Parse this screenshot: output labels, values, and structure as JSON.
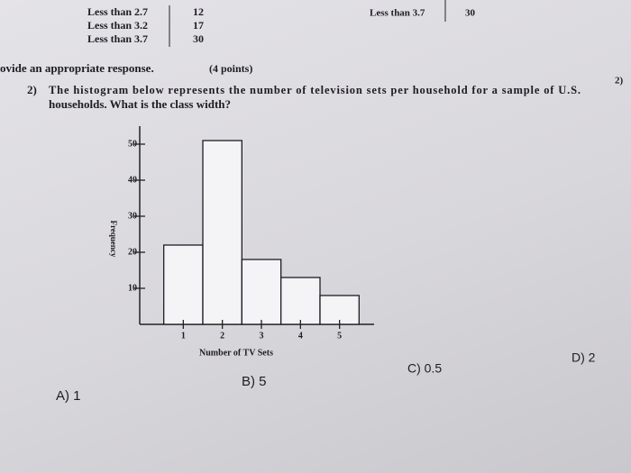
{
  "table_left": {
    "rows": [
      [
        "Less than 2.7",
        "12"
      ],
      [
        "Less than 3.2",
        "17"
      ],
      [
        "Less than 3.7",
        "30"
      ]
    ]
  },
  "table_right": {
    "rows": [
      [
        "Less than 3.7",
        "30"
      ]
    ]
  },
  "instructions": {
    "text": "ovide an appropriate response.",
    "points": "(4 points)"
  },
  "question": {
    "number": "2)",
    "lines": [
      "The histogram below represents the number of television sets per household for a sample of U.S.",
      "households. What is the class width?"
    ],
    "margin_number": "2)"
  },
  "chart_data": {
    "type": "histogram",
    "x_label": "Number of TV Sets",
    "y_label": "Frequency",
    "bins": [
      0.5,
      1.5,
      2.5,
      3.5,
      4.5,
      5.5
    ],
    "values": [
      22,
      51,
      18,
      13,
      8
    ],
    "color": "#f4f3f5",
    "xlim": [
      0,
      6
    ],
    "ylim": [
      0,
      55
    ],
    "xticks": [
      1,
      2,
      3,
      4,
      5
    ],
    "yticks": [
      10,
      20,
      30,
      40,
      50
    ]
  },
  "choices": [
    "A) 1",
    "B) 5",
    "C) 0.5",
    "D) 2"
  ]
}
